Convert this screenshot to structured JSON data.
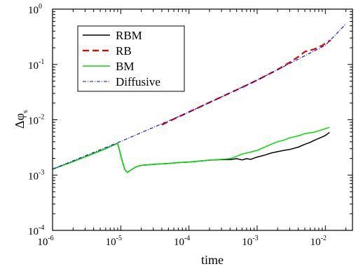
{
  "chart_data": {
    "type": "line",
    "title": "",
    "xlabel": "time",
    "ylabel": {
      "main": "Δφ",
      "sub": "s"
    },
    "xscale": "log",
    "yscale": "log",
    "xlim": [
      1e-06,
      0.025
    ],
    "ylim": [
      0.0001,
      1
    ],
    "x_tick_labels": [
      {
        "base": "10",
        "exp": "-6"
      },
      {
        "base": "10",
        "exp": "-5"
      },
      {
        "base": "10",
        "exp": "-4"
      },
      {
        "base": "10",
        "exp": "-3"
      },
      {
        "base": "10",
        "exp": "-2"
      }
    ],
    "y_tick_labels": [
      {
        "base": "10",
        "exp": "-4"
      },
      {
        "base": "10",
        "exp": "-3"
      },
      {
        "base": "10",
        "exp": "-2"
      },
      {
        "base": "10",
        "exp": "-1"
      },
      {
        "base": "10",
        "exp": "0"
      }
    ],
    "grid": false,
    "legend_position": "top-left",
    "series": [
      {
        "name": "RBM",
        "color": "#000000",
        "dash": "solid",
        "points": [
          [
            1e-06,
            0.00128
          ],
          [
            2e-06,
            0.00175
          ],
          [
            4e-06,
            0.00245
          ],
          [
            6e-06,
            0.003
          ],
          [
            9e-06,
            0.00375
          ],
          [
            1.05e-05,
            0.0018
          ],
          [
            1.15e-05,
            0.00125
          ],
          [
            1.25e-05,
            0.00112
          ],
          [
            1.4e-05,
            0.00122
          ],
          [
            1.6e-05,
            0.00136
          ],
          [
            1.8e-05,
            0.00145
          ],
          [
            2.1e-05,
            0.00151
          ],
          [
            2.6e-05,
            0.00154
          ],
          [
            3.5e-05,
            0.00158
          ],
          [
            5e-05,
            0.00162
          ],
          [
            7e-05,
            0.00168
          ],
          [
            0.0001,
            0.00172
          ],
          [
            0.00015,
            0.0018
          ],
          [
            0.0002,
            0.00186
          ],
          [
            0.0003,
            0.0019
          ],
          [
            0.0004,
            0.0019
          ],
          [
            0.0005,
            0.00198
          ],
          [
            0.0006,
            0.00188
          ],
          [
            0.0007,
            0.00198
          ],
          [
            0.0008,
            0.00192
          ],
          [
            0.001,
            0.00212
          ],
          [
            0.0013,
            0.0023
          ],
          [
            0.0016,
            0.0025
          ],
          [
            0.002,
            0.00265
          ],
          [
            0.0025,
            0.0028
          ],
          [
            0.003,
            0.0029
          ],
          [
            0.004,
            0.0032
          ],
          [
            0.005,
            0.0036
          ],
          [
            0.006,
            0.0039
          ],
          [
            0.007,
            0.0043
          ],
          [
            0.008,
            0.0046
          ],
          [
            0.009,
            0.0049
          ],
          [
            0.01,
            0.0052
          ],
          [
            0.0115,
            0.0059
          ]
        ]
      },
      {
        "name": "RB",
        "color": "#e00000",
        "dash": "long-dash",
        "points": [
          [
            4e-05,
            0.0081
          ],
          [
            6e-05,
            0.0103
          ],
          [
            0.0001,
            0.0138
          ],
          [
            0.0002,
            0.0205
          ],
          [
            0.0004,
            0.0305
          ],
          [
            0.0007,
            0.042
          ],
          [
            0.001,
            0.052
          ],
          [
            0.002,
            0.081
          ],
          [
            0.003,
            0.109
          ],
          [
            0.004,
            0.137
          ],
          [
            0.005,
            0.17
          ],
          [
            0.006,
            0.18
          ],
          [
            0.007,
            0.19
          ],
          [
            0.008,
            0.205
          ],
          [
            0.009,
            0.22
          ],
          [
            0.01,
            0.24
          ],
          [
            0.011,
            0.26
          ],
          [
            0.012,
            0.275
          ]
        ]
      },
      {
        "name": "BM",
        "color": "#00dd00",
        "dash": "solid",
        "points": [
          [
            1e-06,
            0.00128
          ],
          [
            2e-06,
            0.00175
          ],
          [
            4e-06,
            0.00245
          ],
          [
            6e-06,
            0.003
          ],
          [
            9e-06,
            0.00375
          ],
          [
            1.05e-05,
            0.0018
          ],
          [
            1.15e-05,
            0.00125
          ],
          [
            1.25e-05,
            0.00112
          ],
          [
            1.4e-05,
            0.00122
          ],
          [
            1.6e-05,
            0.00136
          ],
          [
            1.8e-05,
            0.00145
          ],
          [
            2.1e-05,
            0.00151
          ],
          [
            2.6e-05,
            0.00154
          ],
          [
            3.5e-05,
            0.00158
          ],
          [
            5e-05,
            0.00162
          ],
          [
            7e-05,
            0.00168
          ],
          [
            0.0001,
            0.00172
          ],
          [
            0.00015,
            0.0018
          ],
          [
            0.0002,
            0.00186
          ],
          [
            0.0003,
            0.00192
          ],
          [
            0.0004,
            0.00198
          ],
          [
            0.0005,
            0.00218
          ],
          [
            0.0006,
            0.0024
          ],
          [
            0.0007,
            0.0025
          ],
          [
            0.0008,
            0.0026
          ],
          [
            0.001,
            0.0028
          ],
          [
            0.0013,
            0.0032
          ],
          [
            0.0016,
            0.0036
          ],
          [
            0.002,
            0.004
          ],
          [
            0.0025,
            0.0043
          ],
          [
            0.003,
            0.0047
          ],
          [
            0.004,
            0.0051
          ],
          [
            0.005,
            0.0056
          ],
          [
            0.006,
            0.0058
          ],
          [
            0.007,
            0.006
          ],
          [
            0.008,
            0.0063
          ],
          [
            0.009,
            0.0066
          ],
          [
            0.01,
            0.0069
          ],
          [
            0.0115,
            0.0073
          ]
        ]
      },
      {
        "name": "Diffusive",
        "color": "#0000dd",
        "dash": "dash-dot",
        "points": [
          [
            1e-06,
            0.00128
          ],
          [
            1e-05,
            0.00405
          ],
          [
            0.0001,
            0.0137
          ],
          [
            0.001,
            0.0522
          ],
          [
            0.01,
            0.222
          ],
          [
            0.02,
            0.54
          ]
        ]
      }
    ]
  }
}
